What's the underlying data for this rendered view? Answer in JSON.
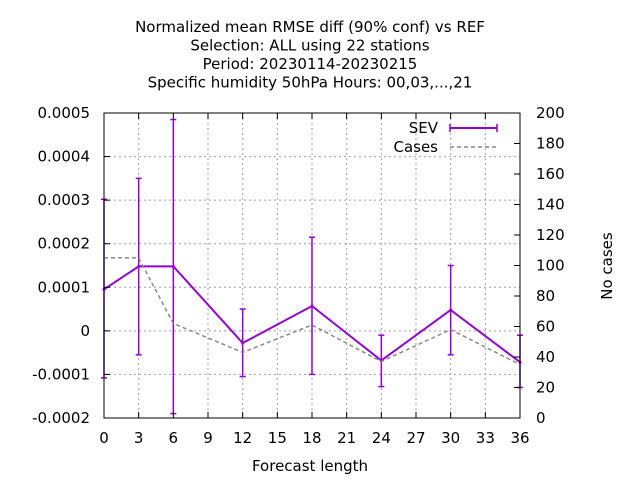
{
  "chart_data": {
    "type": "line",
    "title_lines": [
      "Normalized mean RMSE diff (90% conf) vs REF",
      "Selection: ALL using    22 stations",
      "Period: 20230114-20230215",
      "Specific humidity 50hPa   Hours:  00,03,...,21"
    ],
    "xlabel": "Forecast length",
    "ylabel_right": "No cases",
    "xlim": [
      0,
      36
    ],
    "ylim_left": [
      -0.0002,
      0.0005
    ],
    "ylim_right": [
      0,
      200
    ],
    "x_ticks": [
      0,
      3,
      6,
      9,
      12,
      15,
      18,
      21,
      24,
      27,
      30,
      33,
      36
    ],
    "y_ticks_left": [
      -0.0002,
      -0.0001,
      0,
      0.0001,
      0.0002,
      0.0003,
      0.0004,
      0.0005
    ],
    "y_tick_labels_left": [
      "-0.0002",
      "-0.0001",
      "0",
      "0.0001",
      "0.0002",
      "0.0003",
      "0.0004",
      "0.0005"
    ],
    "y_ticks_right": [
      0,
      20,
      40,
      60,
      80,
      100,
      120,
      140,
      160,
      180,
      200
    ],
    "grid": true,
    "legend_position": "top-right",
    "series": [
      {
        "name": "SEV",
        "axis": "left",
        "color": "#9400d3",
        "style": "solid-errorbars",
        "x": [
          0,
          3,
          6,
          12,
          18,
          24,
          30,
          36
        ],
        "y": [
          9.5e-05,
          0.000148,
          0.000148,
          -2.8e-05,
          5.7e-05,
          -6.8e-05,
          4.8e-05,
          -7.2e-05
        ],
        "err_low": [
          -0.000108,
          -5.5e-05,
          -0.00019,
          -0.000105,
          -0.0001,
          -0.000128,
          -5.5e-05,
          -0.00013
        ],
        "err_high": [
          0.000302,
          0.00035,
          0.000485,
          5e-05,
          0.000215,
          -1e-05,
          0.00015,
          -1e-05
        ]
      },
      {
        "name": "Cases",
        "axis": "right",
        "color": "#888888",
        "style": "dashed",
        "x": [
          0,
          3,
          6,
          12,
          18,
          24,
          30,
          36
        ],
        "y": [
          105,
          105,
          62,
          43,
          61,
          37,
          58,
          35
        ]
      }
    ]
  }
}
